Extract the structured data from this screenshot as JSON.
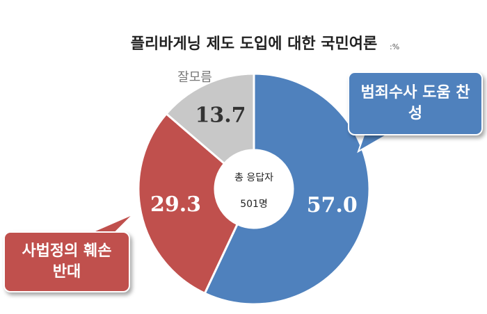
{
  "chart_data": {
    "type": "donut",
    "title": "플리바게닝 제도 도입에 대한 국민여론",
    "unit": ":%",
    "categories": [
      "범죄수사 도움 찬성",
      "사법정의 훼손 반대",
      "잘모름"
    ],
    "values": [
      57.0,
      29.3,
      13.7
    ],
    "value_labels": [
      "57.0",
      "29.3",
      "13.7"
    ],
    "colors": [
      "#4f81bd",
      "#c0504d",
      "#c8c8c8"
    ],
    "center_label": "총 응답자",
    "center_value": "501명"
  }
}
